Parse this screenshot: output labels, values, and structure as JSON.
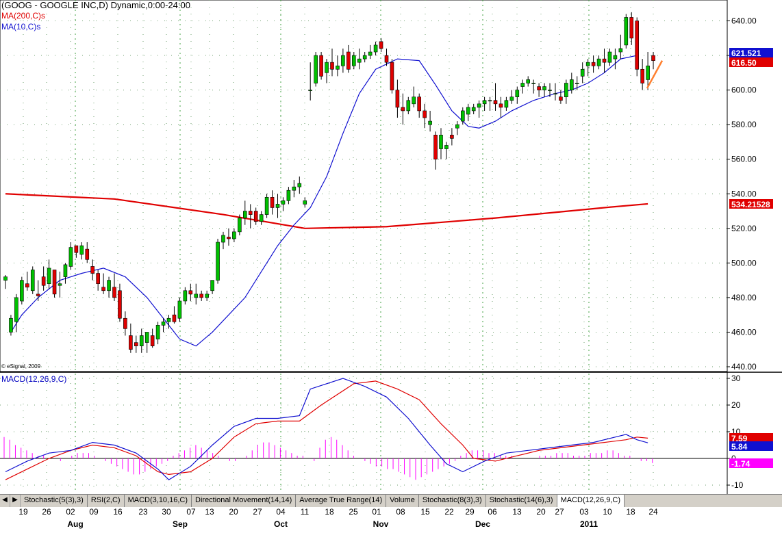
{
  "header": {
    "title": "(GOOG - GOOGLE INC,D) Dynamic,0:00-24:00",
    "ma200_label": "MA(200,C)s",
    "ma10_label": "MA(10,C)s",
    "copyright": "© eSignal, 2009",
    "macd_label": "MACD(12,26,9,C)"
  },
  "colors": {
    "up_candle": "#00c000",
    "down_candle": "#e00000",
    "ma200": "#e00000",
    "ma10": "#1010d0",
    "macd_line": "#1010d0",
    "signal_line": "#e00000",
    "histogram": "#ff00ff",
    "trend_line": "#ff8030"
  },
  "price_axis": {
    "ticks": [
      "640.00",
      "620.00",
      "600.00",
      "580.00",
      "560.00",
      "540.00",
      "520.00",
      "500.00",
      "480.00",
      "460.00",
      "440.00"
    ],
    "tick_values": [
      640,
      620,
      600,
      580,
      560,
      540,
      520,
      500,
      480,
      460,
      440
    ],
    "marker_ma10": "621.521",
    "marker_close": "616.50",
    "marker_ma200": "534.21528"
  },
  "macd_axis": {
    "ticks": [
      "30",
      "20",
      "10",
      "0",
      "-10"
    ],
    "tick_values": [
      30,
      20,
      10,
      0,
      -10
    ],
    "marker_signal": "7.59",
    "marker_macd": "5.84",
    "marker_hist": "-1.74"
  },
  "x_axis": {
    "day_labels": [
      "19",
      "26",
      "02",
      "09",
      "16",
      "23",
      "30",
      "07",
      "13",
      "20",
      "27",
      "04",
      "11",
      "18",
      "25",
      "01",
      "08",
      "15",
      "22",
      "29",
      "06",
      "13",
      "20",
      "27",
      "03",
      "10",
      "18",
      "24"
    ],
    "month_labels": [
      "Aug",
      "Sep",
      "Oct",
      "Nov",
      "Dec",
      "2011"
    ]
  },
  "tabs": [
    "Stochastic(5(3),3)",
    "RSI(2,C)",
    "MACD(3,10,16,C)",
    "Directional Movement(14,14)",
    "Average True Range(14)",
    "Volume",
    "Stochastic(8(3),3)",
    "Stochastic(14(6),3)",
    "MACD(12,26,9,C)"
  ],
  "active_tab": "MACD(12,26,9,C)",
  "chart_data": {
    "type": "candlestick",
    "title": "(GOOG - GOOGLE INC,D) Dynamic,0:00-24:00",
    "ylim": [
      440,
      645
    ],
    "macd_ylim": [
      -14,
      31
    ],
    "ohlc": [
      [
        490,
        493,
        485,
        492
      ],
      [
        460,
        470,
        458,
        468
      ],
      [
        466,
        482,
        460,
        480
      ],
      [
        478,
        492,
        476,
        490
      ],
      [
        488,
        495,
        484,
        486
      ],
      [
        484,
        498,
        482,
        496
      ],
      [
        482,
        490,
        478,
        481
      ],
      [
        492,
        498,
        484,
        487
      ],
      [
        488,
        502,
        485,
        497
      ],
      [
        496,
        496,
        480,
        482
      ],
      [
        487,
        495,
        480,
        488
      ],
      [
        492,
        500,
        488,
        499
      ],
      [
        498,
        512,
        496,
        509
      ],
      [
        510,
        510,
        503,
        506
      ],
      [
        505,
        512,
        502,
        510
      ],
      [
        508,
        512,
        500,
        502
      ],
      [
        498,
        502,
        490,
        494
      ],
      [
        494,
        496,
        484,
        488
      ],
      [
        486,
        494,
        482,
        484
      ],
      [
        484,
        492,
        480,
        490
      ],
      [
        486,
        494,
        478,
        480
      ],
      [
        484,
        488,
        466,
        468
      ],
      [
        468,
        472,
        458,
        462
      ],
      [
        458,
        465,
        448,
        450
      ],
      [
        454,
        458,
        448,
        452
      ],
      [
        452,
        462,
        448,
        458
      ],
      [
        454,
        460,
        448,
        460
      ],
      [
        458,
        462,
        451,
        452
      ],
      [
        456,
        466,
        453,
        464
      ],
      [
        464,
        468,
        460,
        466
      ],
      [
        466,
        470,
        462,
        468
      ],
      [
        470,
        475,
        465,
        466
      ],
      [
        468,
        480,
        466,
        478
      ],
      [
        478,
        486,
        476,
        484
      ],
      [
        484,
        488,
        478,
        482
      ],
      [
        480,
        488,
        476,
        482
      ],
      [
        482,
        484,
        478,
        480
      ],
      [
        480,
        484,
        478,
        482
      ],
      [
        484,
        490,
        482,
        490
      ],
      [
        490,
        514,
        488,
        512
      ],
      [
        512,
        518,
        508,
        516
      ],
      [
        515,
        520,
        510,
        514
      ],
      [
        514,
        520,
        512,
        518
      ],
      [
        518,
        528,
        516,
        526
      ],
      [
        526,
        536,
        522,
        530
      ],
      [
        530,
        534,
        520,
        528
      ],
      [
        530,
        532,
        522,
        524
      ],
      [
        524,
        530,
        522,
        528
      ],
      [
        528,
        540,
        526,
        538
      ],
      [
        538,
        542,
        528,
        532
      ],
      [
        532,
        540,
        526,
        534
      ],
      [
        534,
        538,
        530,
        536
      ],
      [
        536,
        544,
        534,
        542
      ],
      [
        542,
        548,
        538,
        544
      ],
      [
        544,
        550,
        540,
        546
      ],
      [
        534,
        538,
        532,
        536
      ],
      [
        600,
        616,
        594,
        600
      ],
      [
        604,
        622,
        602,
        620
      ],
      [
        620,
        622,
        606,
        608
      ],
      [
        610,
        618,
        604,
        616
      ],
      [
        616,
        624,
        608,
        612
      ],
      [
        612,
        620,
        608,
        614
      ],
      [
        614,
        624,
        610,
        620
      ],
      [
        622,
        626,
        610,
        612
      ],
      [
        614,
        622,
        612,
        620
      ],
      [
        616,
        624,
        612,
        618
      ],
      [
        618,
        622,
        616,
        620
      ],
      [
        620,
        626,
        618,
        622
      ],
      [
        622,
        628,
        620,
        626
      ],
      [
        628,
        630,
        622,
        624
      ],
      [
        620,
        624,
        614,
        616
      ],
      [
        616,
        618,
        598,
        600
      ],
      [
        600,
        606,
        584,
        590
      ],
      [
        590,
        598,
        580,
        588
      ],
      [
        588,
        596,
        586,
        594
      ],
      [
        592,
        602,
        590,
        596
      ],
      [
        596,
        598,
        584,
        588
      ],
      [
        588,
        592,
        578,
        584
      ],
      [
        580,
        588,
        576,
        582
      ],
      [
        574,
        576,
        554,
        560
      ],
      [
        566,
        578,
        560,
        574
      ],
      [
        566,
        570,
        560,
        568
      ],
      [
        574,
        578,
        568,
        572
      ],
      [
        578,
        582,
        574,
        580
      ],
      [
        582,
        590,
        580,
        588
      ],
      [
        586,
        592,
        582,
        590
      ],
      [
        588,
        592,
        586,
        590
      ],
      [
        590,
        594,
        584,
        592
      ],
      [
        592,
        596,
        588,
        594
      ],
      [
        594,
        596,
        588,
        594
      ],
      [
        594,
        604,
        588,
        592
      ],
      [
        592,
        596,
        584,
        590
      ],
      [
        590,
        596,
        588,
        594
      ],
      [
        594,
        600,
        592,
        596
      ],
      [
        596,
        602,
        592,
        600
      ],
      [
        602,
        606,
        598,
        604
      ],
      [
        604,
        608,
        602,
        606
      ],
      [
        604,
        606,
        598,
        604
      ],
      [
        602,
        604,
        596,
        600
      ],
      [
        600,
        604,
        596,
        602
      ],
      [
        600,
        604,
        596,
        600
      ],
      [
        598,
        604,
        594,
        598
      ],
      [
        596,
        600,
        592,
        594
      ],
      [
        596,
        606,
        592,
        604
      ],
      [
        600,
        610,
        598,
        606
      ],
      [
        604,
        608,
        600,
        604
      ],
      [
        608,
        616,
        604,
        612
      ],
      [
        614,
        618,
        608,
        616
      ],
      [
        616,
        620,
        610,
        614
      ],
      [
        614,
        620,
        612,
        618
      ],
      [
        618,
        624,
        610,
        616
      ],
      [
        616,
        624,
        614,
        622
      ],
      [
        618,
        624,
        612,
        620
      ],
      [
        622,
        632,
        618,
        624
      ],
      [
        626,
        644,
        624,
        642
      ],
      [
        642,
        645,
        626,
        630
      ],
      [
        640,
        642,
        608,
        612
      ],
      [
        612,
        618,
        600,
        604
      ],
      [
        606,
        622,
        600,
        614
      ],
      [
        620,
        622,
        612,
        617
      ]
    ],
    "ma10": [
      [
        1,
        460
      ],
      [
        3,
        470
      ],
      [
        6,
        480
      ],
      [
        8,
        485
      ],
      [
        10,
        490
      ],
      [
        14,
        494
      ],
      [
        18,
        497
      ],
      [
        22,
        492
      ],
      [
        26,
        480
      ],
      [
        29,
        468
      ],
      [
        32,
        456
      ],
      [
        35,
        452
      ],
      [
        38,
        460
      ],
      [
        41,
        470
      ],
      [
        44,
        480
      ],
      [
        47,
        495
      ],
      [
        50,
        510
      ],
      [
        53,
        522
      ],
      [
        56,
        532
      ],
      [
        59,
        550
      ],
      [
        62,
        575
      ],
      [
        65,
        598
      ],
      [
        68,
        612
      ],
      [
        72,
        618
      ],
      [
        76,
        617
      ],
      [
        79,
        603
      ],
      [
        82,
        588
      ],
      [
        85,
        579
      ],
      [
        87,
        578
      ],
      [
        90,
        582
      ],
      [
        93,
        588
      ],
      [
        97,
        594
      ],
      [
        101,
        598
      ],
      [
        104,
        600
      ],
      [
        107,
        604
      ],
      [
        110,
        610
      ],
      [
        113,
        618
      ],
      [
        116,
        620
      ]
    ],
    "ma200": [
      [
        0,
        540
      ],
      [
        20,
        537
      ],
      [
        40,
        528
      ],
      [
        55,
        520
      ],
      [
        70,
        521
      ],
      [
        90,
        526
      ],
      [
        110,
        532
      ],
      [
        118,
        534.2
      ]
    ],
    "macd": [
      [
        0,
        -5
      ],
      [
        4,
        -1
      ],
      [
        8,
        2
      ],
      [
        12,
        3
      ],
      [
        16,
        6
      ],
      [
        20,
        5
      ],
      [
        24,
        2
      ],
      [
        28,
        -4
      ],
      [
        30,
        -8
      ],
      [
        34,
        -3
      ],
      [
        38,
        5
      ],
      [
        42,
        12
      ],
      [
        46,
        15
      ],
      [
        50,
        15
      ],
      [
        54,
        16
      ],
      [
        56,
        26
      ],
      [
        62,
        30
      ],
      [
        66,
        27
      ],
      [
        70,
        23
      ],
      [
        74,
        15
      ],
      [
        78,
        5
      ],
      [
        81,
        -2
      ],
      [
        84,
        -5
      ],
      [
        88,
        -1
      ],
      [
        92,
        2
      ],
      [
        96,
        3
      ],
      [
        100,
        4
      ],
      [
        104,
        5
      ],
      [
        108,
        6
      ],
      [
        112,
        8
      ],
      [
        114,
        9
      ],
      [
        116,
        7
      ],
      [
        118,
        5.84
      ]
    ],
    "signal": [
      [
        0,
        -8
      ],
      [
        4,
        -4
      ],
      [
        8,
        0
      ],
      [
        12,
        3
      ],
      [
        16,
        5
      ],
      [
        20,
        4
      ],
      [
        24,
        1
      ],
      [
        28,
        -5
      ],
      [
        30,
        -6
      ],
      [
        34,
        -5
      ],
      [
        38,
        0
      ],
      [
        42,
        8
      ],
      [
        46,
        13
      ],
      [
        50,
        14
      ],
      [
        54,
        14
      ],
      [
        58,
        20
      ],
      [
        64,
        28
      ],
      [
        68,
        29
      ],
      [
        72,
        26
      ],
      [
        76,
        22
      ],
      [
        80,
        13
      ],
      [
        84,
        5
      ],
      [
        86,
        0
      ],
      [
        90,
        -1
      ],
      [
        94,
        1
      ],
      [
        98,
        3
      ],
      [
        102,
        4
      ],
      [
        106,
        5
      ],
      [
        110,
        6
      ],
      [
        114,
        7
      ],
      [
        116,
        8
      ],
      [
        118,
        7.59
      ]
    ],
    "histogram": [
      8,
      7,
      5,
      4,
      3,
      2,
      1,
      1,
      0,
      0,
      -1,
      0,
      1,
      2,
      2,
      2,
      1,
      0,
      -1,
      -2,
      -3,
      -4,
      -5,
      -6,
      -6,
      -5,
      -4,
      -3,
      -2,
      -1,
      1,
      2,
      3,
      4,
      5,
      4,
      3,
      2,
      1,
      0,
      -1,
      -1,
      0,
      1,
      3,
      5,
      6,
      6,
      5,
      4,
      3,
      2,
      1,
      1,
      0,
      -1,
      4,
      7,
      8,
      7,
      5,
      3,
      1,
      0,
      -1,
      -2,
      -3,
      -3,
      -4,
      -4,
      -5,
      -6,
      -7,
      -8,
      -7,
      -6,
      -5,
      -4,
      -3,
      -2,
      -1,
      1,
      2,
      3,
      3,
      3,
      2,
      2,
      1,
      1,
      1,
      0,
      0,
      0,
      0,
      1,
      1,
      1,
      2,
      2,
      2,
      1,
      1,
      1,
      2,
      2,
      2,
      3,
      3,
      2,
      1,
      1,
      0,
      -1,
      -1,
      -1.74
    ],
    "trend_line": [
      [
        116,
        601
      ],
      [
        121,
        617
      ]
    ]
  }
}
